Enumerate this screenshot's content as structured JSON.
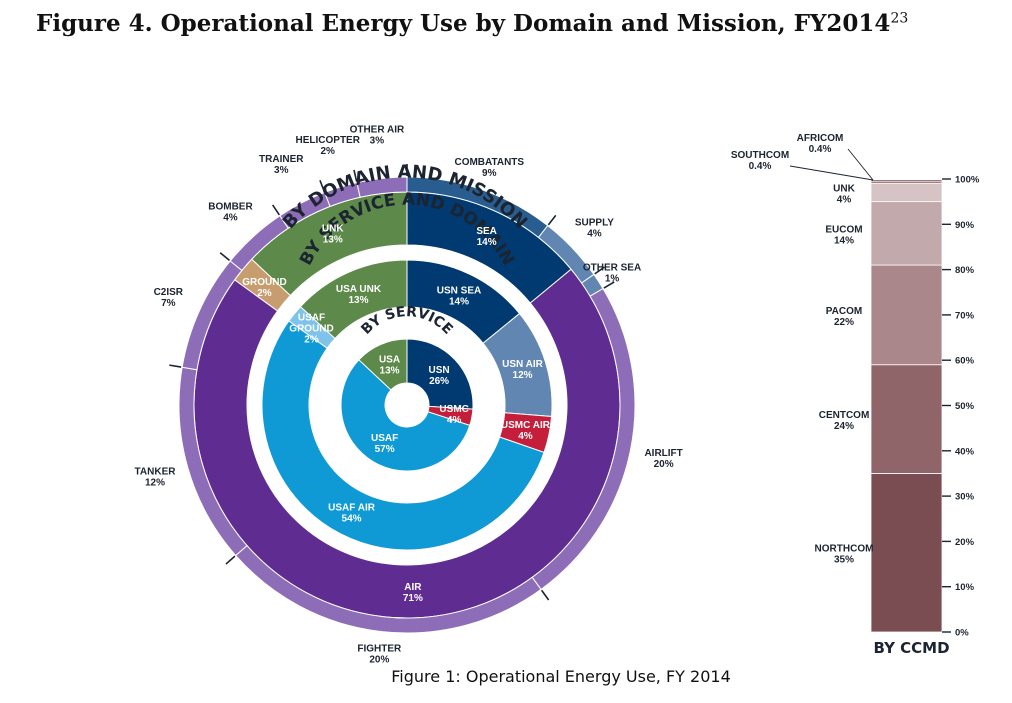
{
  "page": {
    "title": "Figure 4. Operational Energy Use by Domain and Mission, FY2014",
    "title_footnote": "23",
    "caption": "Figure 1: Operational Energy Use, FY 2014"
  },
  "chart_data": [
    {
      "type": "sunburst",
      "ring_titles": {
        "service": "BY SERVICE",
        "service_domain": "BY SERVICE AND DOMAIN",
        "domain_mission": "BY DOMAIN AND MISSION"
      },
      "by_service": [
        {
          "label": "USN",
          "pct": "26%",
          "value": 26,
          "color": "#003a70"
        },
        {
          "label": "USMC",
          "pct": "4%",
          "value": 4,
          "color": "#c41e3a"
        },
        {
          "label": "USAF",
          "pct": "57%",
          "value": 57,
          "color": "#0f9ad6"
        },
        {
          "label": "USA",
          "pct": "13%",
          "value": 13,
          "color": "#5d8a4a"
        }
      ],
      "by_service_and_domain": [
        {
          "label": "USN SEA",
          "pct": "14%",
          "value": 14,
          "color": "#003a70"
        },
        {
          "label": "USN AIR",
          "pct": "12%",
          "value": 12,
          "color": "#6186b1"
        },
        {
          "label": "USMC AIR",
          "pct": "4%",
          "value": 4,
          "color": "#c41e3a"
        },
        {
          "label": "USAF AIR",
          "pct": "54%",
          "value": 54,
          "color": "#0f9ad6"
        },
        {
          "label": "USAF GROUND",
          "pct": "2%",
          "value": 2,
          "color": "#7fc3ea"
        },
        {
          "label": "USA UNK",
          "pct": "13%",
          "value": 13,
          "color": "#5d8a4a"
        }
      ],
      "by_domain": [
        {
          "label": "SEA",
          "pct": "14%",
          "value": 14,
          "color": "#003a70"
        },
        {
          "label": "AIR",
          "pct": "71%",
          "value": 71,
          "color": "#5f2d91"
        },
        {
          "label": "GROUND",
          "pct": "2%",
          "value": 2,
          "color": "#c79c6e"
        },
        {
          "label": "UNK",
          "pct": "13%",
          "value": 13,
          "color": "#5d8a4a"
        }
      ],
      "by_mission": [
        {
          "label": "COMBATANTS",
          "pct": "9%",
          "value": 9,
          "color": "#2a5d8f"
        },
        {
          "label": "SUPPLY",
          "pct": "4%",
          "value": 4,
          "color": "#6186b1"
        },
        {
          "label": "OTHER SEA",
          "pct": "1%",
          "value": 1,
          "color": "#6186b1"
        },
        {
          "label": "AIRLIFT",
          "pct": "20%",
          "value": 20,
          "color": "#8d6db7"
        },
        {
          "label": "FIGHTER",
          "pct": "20%",
          "value": 20,
          "color": "#8d6db7"
        },
        {
          "label": "TANKER",
          "pct": "12%",
          "value": 12,
          "color": "#8d6db7"
        },
        {
          "label": "C2ISR",
          "pct": "7%",
          "value": 7,
          "color": "#8d6db7"
        },
        {
          "label": "BOMBER",
          "pct": "4%",
          "value": 4,
          "color": "#8d6db7"
        },
        {
          "label": "TRAINER",
          "pct": "3%",
          "value": 3,
          "color": "#8d6db7"
        },
        {
          "label": "HELICOPTER",
          "pct": "2%",
          "value": 2,
          "color": "#8d6db7"
        },
        {
          "label": "OTHER AIR",
          "pct": "3%",
          "value": 3,
          "color": "#8d6db7"
        }
      ]
    },
    {
      "type": "stacked-bar",
      "title": "BY CCMD",
      "y_ticks": [
        "0%",
        "10%",
        "20%",
        "30%",
        "40%",
        "50%",
        "60%",
        "70%",
        "80%",
        "90%",
        "100%"
      ],
      "ylim": [
        0,
        100
      ],
      "segments": [
        {
          "label": "NORTHCOM",
          "pct": "35%",
          "value": 35,
          "color": "#7a4d52"
        },
        {
          "label": "CENTCOM",
          "pct": "24%",
          "value": 24,
          "color": "#906569"
        },
        {
          "label": "PACOM",
          "pct": "22%",
          "value": 22,
          "color": "#a9878a"
        },
        {
          "label": "EUCOM",
          "pct": "14%",
          "value": 14,
          "color": "#c2a9ab"
        },
        {
          "label": "UNK",
          "pct": "4%",
          "value": 4,
          "color": "#d6c3c5"
        },
        {
          "label": "SOUTHCOM",
          "pct": "0.4%",
          "value": 0.4,
          "color": "#8c5f64"
        },
        {
          "label": "AFRICOM",
          "pct": "0.4%",
          "value": 0.4,
          "color": "#6b3f44"
        }
      ]
    }
  ]
}
